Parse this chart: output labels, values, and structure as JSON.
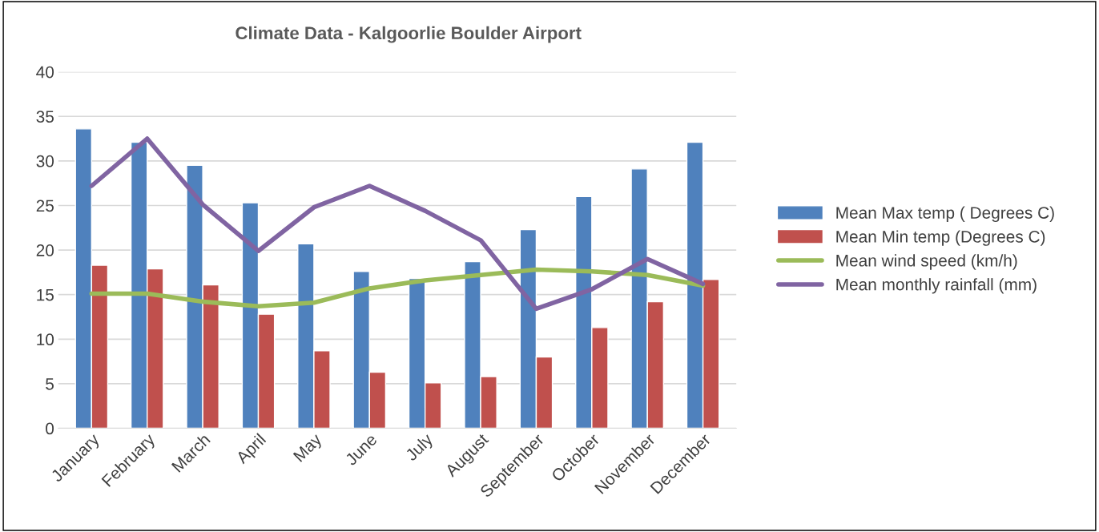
{
  "chart_data": {
    "type": "bar",
    "title": "Climate Data - Kalgoorlie Boulder Airport",
    "categories": [
      "January",
      "February",
      "March",
      "April",
      "May",
      "June",
      "July",
      "August",
      "September",
      "October",
      "November",
      "December"
    ],
    "series": [
      {
        "name": "Mean Max temp ( Degrees C)",
        "color": "#4f81bd",
        "values": [
          33.6,
          32.1,
          29.5,
          25.3,
          20.7,
          17.6,
          16.8,
          18.7,
          22.3,
          26.0,
          29.1,
          32.1
        ]
      },
      {
        "name": "Mean Min temp (Degrees C)",
        "color": "#c0504d",
        "values": [
          18.3,
          17.9,
          16.1,
          12.8,
          8.7,
          6.3,
          5.1,
          5.8,
          8.0,
          11.3,
          14.2,
          16.7
        ]
      },
      {
        "name": "Mean wind speed (km/h)",
        "type": "line",
        "color": "#9bbb59",
        "values": [
          15.1,
          15.1,
          14.2,
          13.7,
          14.1,
          15.7,
          16.6,
          17.2,
          17.8,
          17.6,
          17.2,
          16.0
        ]
      },
      {
        "name": "Mean monthly rainfall (mm)",
        "type": "line",
        "color": "#8064a2",
        "values": [
          27.2,
          32.5,
          25.1,
          19.9,
          24.8,
          27.2,
          24.4,
          21.1,
          13.4,
          15.6,
          19.0,
          16.2
        ]
      }
    ],
    "ylim": [
      0,
      40
    ],
    "yticks": [
      0,
      5,
      10,
      15,
      20,
      25,
      30,
      35,
      40
    ],
    "grid": "y",
    "legend": "right",
    "line_style": "solid"
  }
}
